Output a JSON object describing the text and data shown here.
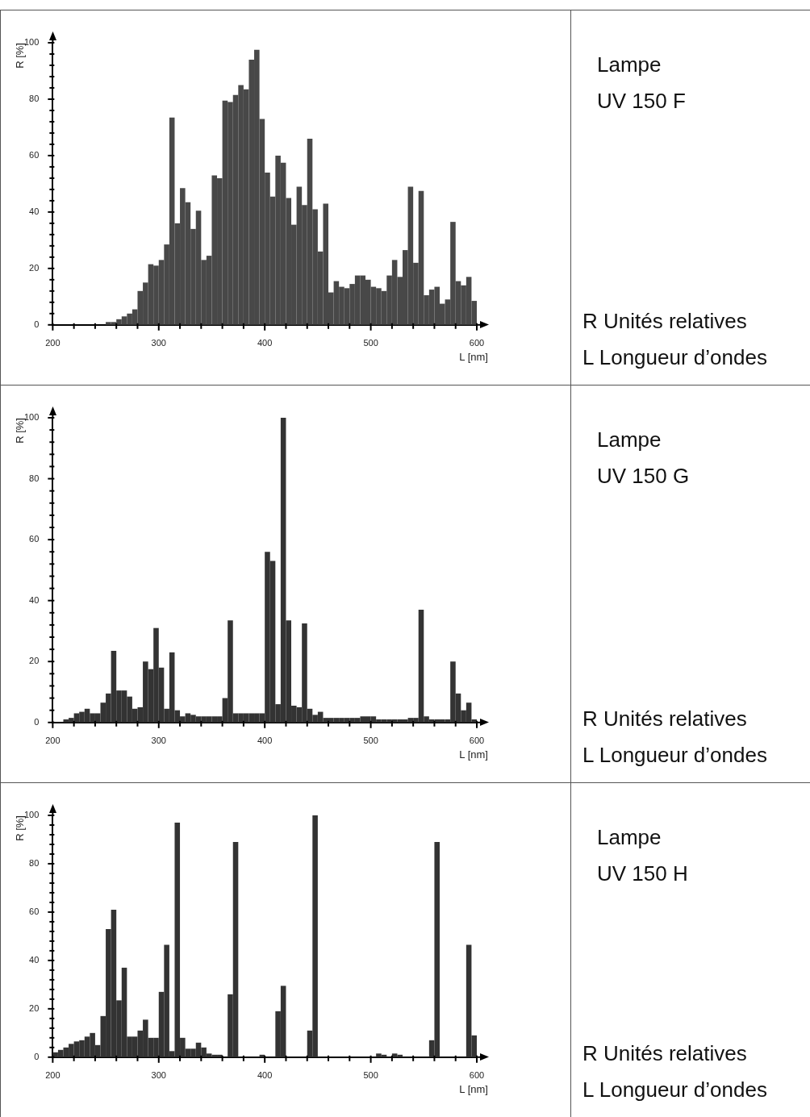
{
  "chart_data": [
    {
      "type": "histogram",
      "xlabel": "L [nm]",
      "ylabel": "R [%]",
      "annotations": [
        "Lampe",
        "UV 150 F",
        "R Unités relatives",
        "L Longueur d’ondes"
      ],
      "color": "#484848",
      "bins": [
        250,
        255,
        260,
        265,
        270,
        275,
        280,
        285,
        290,
        295,
        300,
        305,
        310,
        315,
        320,
        325,
        330,
        335,
        340,
        345,
        350,
        355,
        360,
        365,
        370,
        375,
        380,
        385,
        390,
        395,
        400,
        405,
        410,
        415,
        420,
        425,
        430,
        435,
        440,
        445,
        450,
        455,
        460,
        465,
        470,
        475,
        480,
        485,
        490,
        495,
        500,
        505,
        510,
        515,
        520,
        525,
        530,
        535,
        540,
        545,
        550,
        555,
        560,
        565,
        570,
        575,
        580,
        585,
        590,
        595,
        600
      ],
      "values": [
        1,
        1,
        2,
        3,
        4,
        5.5,
        12,
        15,
        21.5,
        21,
        23,
        28.5,
        73.5,
        36,
        48.5,
        43.5,
        34,
        40.5,
        23,
        24.5,
        53,
        52,
        79.5,
        79,
        81.5,
        85,
        83.5,
        94,
        97.5,
        73,
        54,
        45.5,
        60,
        57.5,
        45,
        35.5,
        49,
        42.5,
        66,
        41,
        26,
        43,
        11.5,
        15.5,
        13.5,
        13,
        14.5,
        17.5,
        17.5,
        16,
        13.5,
        13,
        12,
        17.5,
        23,
        17,
        26.5,
        49,
        22,
        47.5,
        10.5,
        12.5,
        13.5,
        7.5,
        9,
        36.5,
        15.5,
        14,
        17,
        8.5
      ],
      "xlim": [
        200,
        600
      ],
      "ylim": [
        0,
        100
      ],
      "xticks": [
        200,
        {
          "value": 220,
          "label": null
        },
        {
          "value": 240,
          "label": null
        },
        {
          "value": 260,
          "label": null
        },
        {
          "value": 280,
          "label": null
        },
        300,
        {
          "value": 320,
          "label": null
        },
        {
          "value": 340,
          "label": null
        },
        {
          "value": 360,
          "label": null
        },
        {
          "value": 380,
          "label": null
        },
        400,
        {
          "value": 420,
          "label": null
        },
        {
          "value": 440,
          "label": null
        },
        {
          "value": 460,
          "label": null
        },
        {
          "value": 480,
          "label": null
        },
        500,
        {
          "value": 520,
          "label": null
        },
        {
          "value": 540,
          "label": null
        },
        {
          "value": 560,
          "label": null
        },
        {
          "value": 580,
          "label": null
        },
        600
      ],
      "yticks": [
        0,
        {
          "value": 4,
          "label": null
        },
        {
          "value": 8,
          "label": null
        },
        {
          "value": 12,
          "label": null
        },
        {
          "value": 16,
          "label": null
        },
        20,
        {
          "value": 24,
          "label": null
        },
        {
          "value": 28,
          "label": null
        },
        {
          "value": 32,
          "label": null
        },
        {
          "value": 36,
          "label": null
        },
        40,
        {
          "value": 44,
          "label": null
        },
        {
          "value": 48,
          "label": null
        },
        {
          "value": 52,
          "label": null
        },
        {
          "value": 56,
          "label": null
        },
        60,
        {
          "value": 64,
          "label": null
        },
        {
          "value": 68,
          "label": null
        },
        {
          "value": 72,
          "label": null
        },
        {
          "value": 76,
          "label": null
        },
        80,
        {
          "value": 84,
          "label": null
        },
        {
          "value": 88,
          "label": null
        },
        {
          "value": 92,
          "label": null
        },
        {
          "value": 96,
          "label": null
        },
        100
      ]
    },
    {
      "type": "histogram",
      "xlabel": "L [nm]",
      "ylabel": "R [%]",
      "annotations": [
        "Lampe",
        "UV 150 G",
        "R Unités relatives",
        "L Longueur d’ondes"
      ],
      "color": "#333333",
      "bins": [
        210,
        215,
        220,
        225,
        230,
        235,
        240,
        245,
        250,
        255,
        260,
        265,
        270,
        275,
        280,
        285,
        290,
        295,
        300,
        305,
        310,
        315,
        320,
        325,
        330,
        335,
        340,
        345,
        350,
        355,
        360,
        365,
        370,
        375,
        380,
        385,
        390,
        395,
        400,
        405,
        410,
        415,
        420,
        425,
        430,
        435,
        440,
        445,
        450,
        455,
        460,
        465,
        470,
        475,
        480,
        485,
        490,
        495,
        500,
        505,
        510,
        515,
        520,
        525,
        530,
        535,
        540,
        545,
        550,
        555,
        560,
        565,
        570,
        575,
        580,
        585,
        590,
        595,
        600
      ],
      "values": [
        1,
        1.5,
        3,
        3.5,
        4.5,
        3,
        3,
        6.5,
        9.5,
        23.5,
        10.5,
        10.5,
        8.5,
        4.5,
        5,
        20,
        17.5,
        31,
        18,
        4.5,
        23,
        4,
        2,
        3,
        2.5,
        2,
        2,
        2,
        2,
        2,
        8,
        33.5,
        3,
        3,
        3,
        3,
        3,
        3,
        56,
        53,
        6,
        100,
        33.5,
        5.5,
        5,
        32.5,
        4.5,
        2.5,
        3.5,
        1.5,
        1.5,
        1.5,
        1.5,
        1.5,
        1.5,
        1.5,
        2,
        2,
        2,
        1,
        1,
        1,
        1,
        1,
        1,
        1.5,
        1.5,
        37,
        2,
        1,
        1,
        1,
        1,
        20,
        9.5,
        4,
        6.5,
        1
      ],
      "xlim": [
        200,
        600
      ],
      "ylim": [
        0,
        100
      ],
      "xticks": [
        200,
        {
          "value": 220,
          "label": null
        },
        {
          "value": 240,
          "label": null
        },
        {
          "value": 260,
          "label": null
        },
        {
          "value": 280,
          "label": null
        },
        300,
        {
          "value": 320,
          "label": null
        },
        {
          "value": 340,
          "label": null
        },
        {
          "value": 360,
          "label": null
        },
        {
          "value": 380,
          "label": null
        },
        400,
        {
          "value": 420,
          "label": null
        },
        {
          "value": 440,
          "label": null
        },
        {
          "value": 460,
          "label": null
        },
        {
          "value": 480,
          "label": null
        },
        500,
        {
          "value": 520,
          "label": null
        },
        {
          "value": 540,
          "label": null
        },
        {
          "value": 560,
          "label": null
        },
        {
          "value": 580,
          "label": null
        },
        600
      ],
      "yticks": [
        0,
        {
          "value": 4,
          "label": null
        },
        {
          "value": 8,
          "label": null
        },
        {
          "value": 12,
          "label": null
        },
        {
          "value": 16,
          "label": null
        },
        20,
        {
          "value": 24,
          "label": null
        },
        {
          "value": 28,
          "label": null
        },
        {
          "value": 32,
          "label": null
        },
        {
          "value": 36,
          "label": null
        },
        40,
        {
          "value": 44,
          "label": null
        },
        {
          "value": 48,
          "label": null
        },
        {
          "value": 52,
          "label": null
        },
        {
          "value": 56,
          "label": null
        },
        60,
        {
          "value": 64,
          "label": null
        },
        {
          "value": 68,
          "label": null
        },
        {
          "value": 72,
          "label": null
        },
        {
          "value": 76,
          "label": null
        },
        80,
        {
          "value": 84,
          "label": null
        },
        {
          "value": 88,
          "label": null
        },
        {
          "value": 92,
          "label": null
        },
        {
          "value": 96,
          "label": null
        },
        100
      ]
    },
    {
      "type": "histogram",
      "xlabel": "L [nm]",
      "ylabel": "R [%]",
      "annotations": [
        "Lampe",
        "UV 150 H",
        "R Unités relatives",
        "L Longueur d’ondes"
      ],
      "color": "#333333",
      "bins": [
        200,
        205,
        210,
        215,
        220,
        225,
        230,
        235,
        240,
        245,
        250,
        255,
        260,
        265,
        270,
        275,
        280,
        285,
        290,
        295,
        300,
        305,
        310,
        315,
        320,
        325,
        330,
        335,
        340,
        345,
        350,
        355,
        360,
        365,
        370,
        375,
        395,
        400,
        410,
        415,
        420,
        440,
        445,
        450,
        505,
        510,
        515,
        520,
        525,
        530,
        555,
        560,
        565,
        590,
        595,
        600
      ],
      "values": [
        2,
        3,
        4,
        5.5,
        6.5,
        7,
        8.5,
        10,
        5,
        17,
        53,
        61,
        23.5,
        37,
        8.5,
        8.5,
        11,
        15.5,
        8,
        8,
        27,
        46.5,
        2.5,
        97,
        8,
        3.5,
        3.5,
        6,
        4,
        1.5,
        1,
        1,
        0,
        26,
        89,
        0,
        1,
        0,
        19,
        29.5,
        0,
        11,
        100,
        0,
        1.5,
        1,
        0,
        1.5,
        1,
        0,
        7,
        89,
        0,
        46.5,
        9
      ],
      "xlim": [
        200,
        600
      ],
      "ylim": [
        0,
        100
      ],
      "xticks": [
        200,
        {
          "value": 220,
          "label": null
        },
        {
          "value": 240,
          "label": null
        },
        {
          "value": 260,
          "label": null
        },
        {
          "value": 280,
          "label": null
        },
        300,
        {
          "value": 320,
          "label": null
        },
        {
          "value": 340,
          "label": null
        },
        {
          "value": 360,
          "label": null
        },
        {
          "value": 380,
          "label": null
        },
        400,
        {
          "value": 420,
          "label": null
        },
        {
          "value": 440,
          "label": null
        },
        {
          "value": 460,
          "label": null
        },
        {
          "value": 480,
          "label": null
        },
        500,
        {
          "value": 520,
          "label": null
        },
        {
          "value": 540,
          "label": null
        },
        {
          "value": 560,
          "label": null
        },
        {
          "value": 580,
          "label": null
        },
        600
      ],
      "yticks": [
        0,
        {
          "value": 4,
          "label": null
        },
        {
          "value": 8,
          "label": null
        },
        {
          "value": 12,
          "label": null
        },
        {
          "value": 16,
          "label": null
        },
        20,
        {
          "value": 24,
          "label": null
        },
        {
          "value": 28,
          "label": null
        },
        {
          "value": 32,
          "label": null
        },
        {
          "value": 36,
          "label": null
        },
        40,
        {
          "value": 44,
          "label": null
        },
        {
          "value": 48,
          "label": null
        },
        {
          "value": 52,
          "label": null
        },
        {
          "value": 56,
          "label": null
        },
        60,
        {
          "value": 64,
          "label": null
        },
        {
          "value": 68,
          "label": null
        },
        {
          "value": 72,
          "label": null
        },
        {
          "value": 76,
          "label": null
        },
        80,
        {
          "value": 84,
          "label": null
        },
        {
          "value": 88,
          "label": null
        },
        {
          "value": 92,
          "label": null
        },
        {
          "value": 96,
          "label": null
        },
        100
      ]
    }
  ]
}
